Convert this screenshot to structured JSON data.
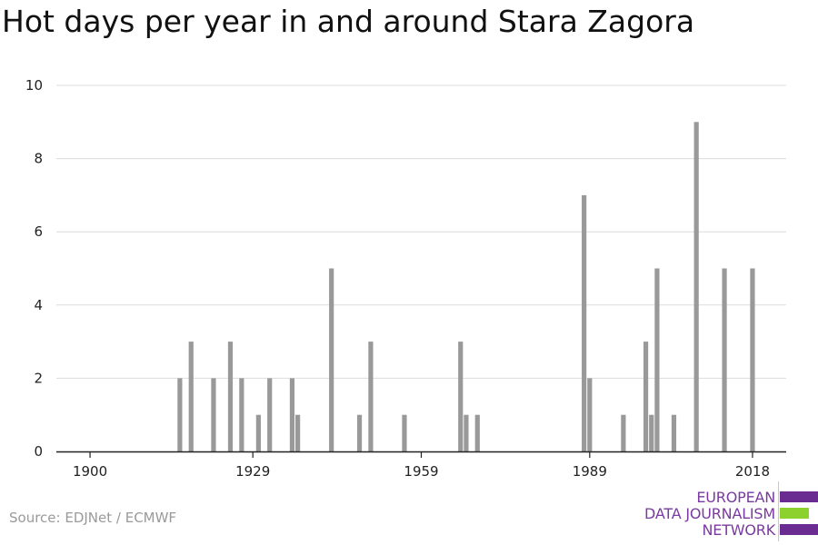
{
  "chart_data": {
    "type": "bar",
    "title": "Hot days per year in and around Stara Zagora",
    "xlabel": "",
    "ylabel": "",
    "xlim": [
      1894,
      2024
    ],
    "ylim": [
      0,
      10
    ],
    "x_ticks": [
      1900,
      1929,
      1959,
      1989,
      2018
    ],
    "y_ticks": [
      0,
      2,
      4,
      6,
      8,
      10
    ],
    "grid": true,
    "bar_color": "#999999",
    "series": [
      {
        "x": [
          1916,
          1918,
          1922,
          1925,
          1927,
          1930,
          1932,
          1936,
          1937,
          1943,
          1948,
          1950,
          1956,
          1966,
          1967,
          1969,
          1988,
          1989,
          1995,
          1999,
          2000,
          2001,
          2004,
          2008,
          2013,
          2018
        ],
        "values": [
          2,
          3,
          2,
          3,
          2,
          1,
          2,
          2,
          1,
          5,
          1,
          3,
          1,
          3,
          1,
          1,
          7,
          2,
          1,
          3,
          1,
          5,
          1,
          9,
          5,
          5
        ]
      }
    ]
  },
  "source": "Source: EDJNet / ECMWF",
  "logo": {
    "line1": "EUROPEAN",
    "line2": "DATA JOURNALISM",
    "line3": "NETWORK",
    "colors": {
      "purple": "#6a2c91",
      "green": "#8cd12e",
      "text": "#7a3aa0"
    }
  }
}
